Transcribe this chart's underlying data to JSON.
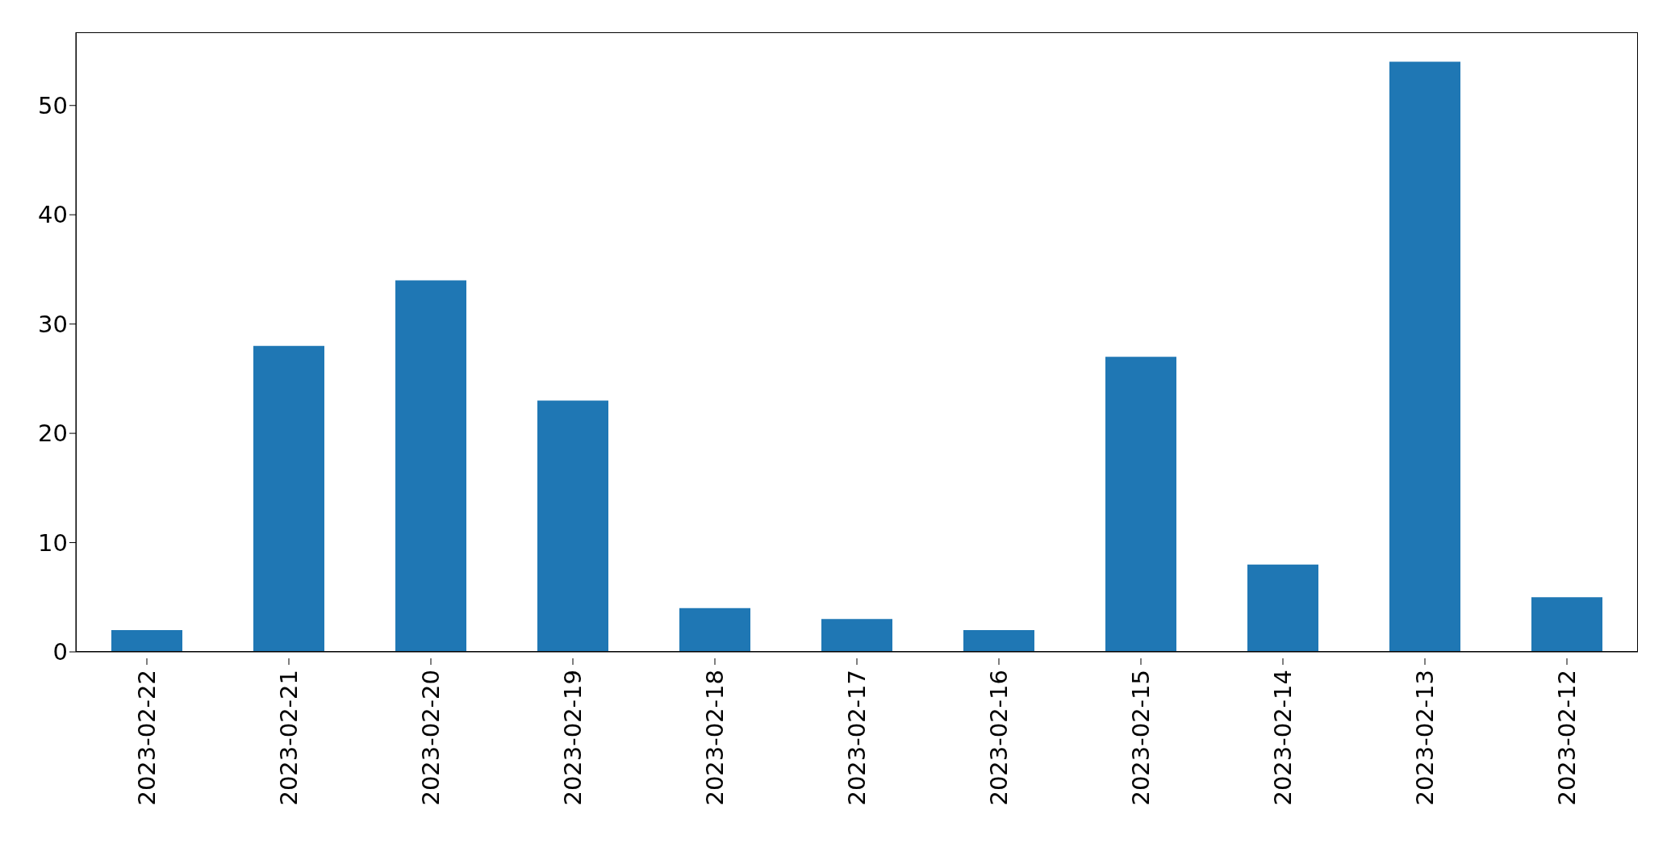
{
  "chart_data": {
    "type": "bar",
    "categories": [
      "2023-02-22",
      "2023-02-21",
      "2023-02-20",
      "2023-02-19",
      "2023-02-18",
      "2023-02-17",
      "2023-02-16",
      "2023-02-15",
      "2023-02-14",
      "2023-02-13",
      "2023-02-12"
    ],
    "values": [
      2,
      28,
      34,
      23,
      4,
      3,
      2,
      27,
      8,
      54,
      5
    ],
    "color": "#1f77b4",
    "ylim": [
      0,
      56.7
    ],
    "yticks": [
      0,
      10,
      20,
      30,
      40,
      50
    ],
    "grid": false,
    "legend": false
  }
}
